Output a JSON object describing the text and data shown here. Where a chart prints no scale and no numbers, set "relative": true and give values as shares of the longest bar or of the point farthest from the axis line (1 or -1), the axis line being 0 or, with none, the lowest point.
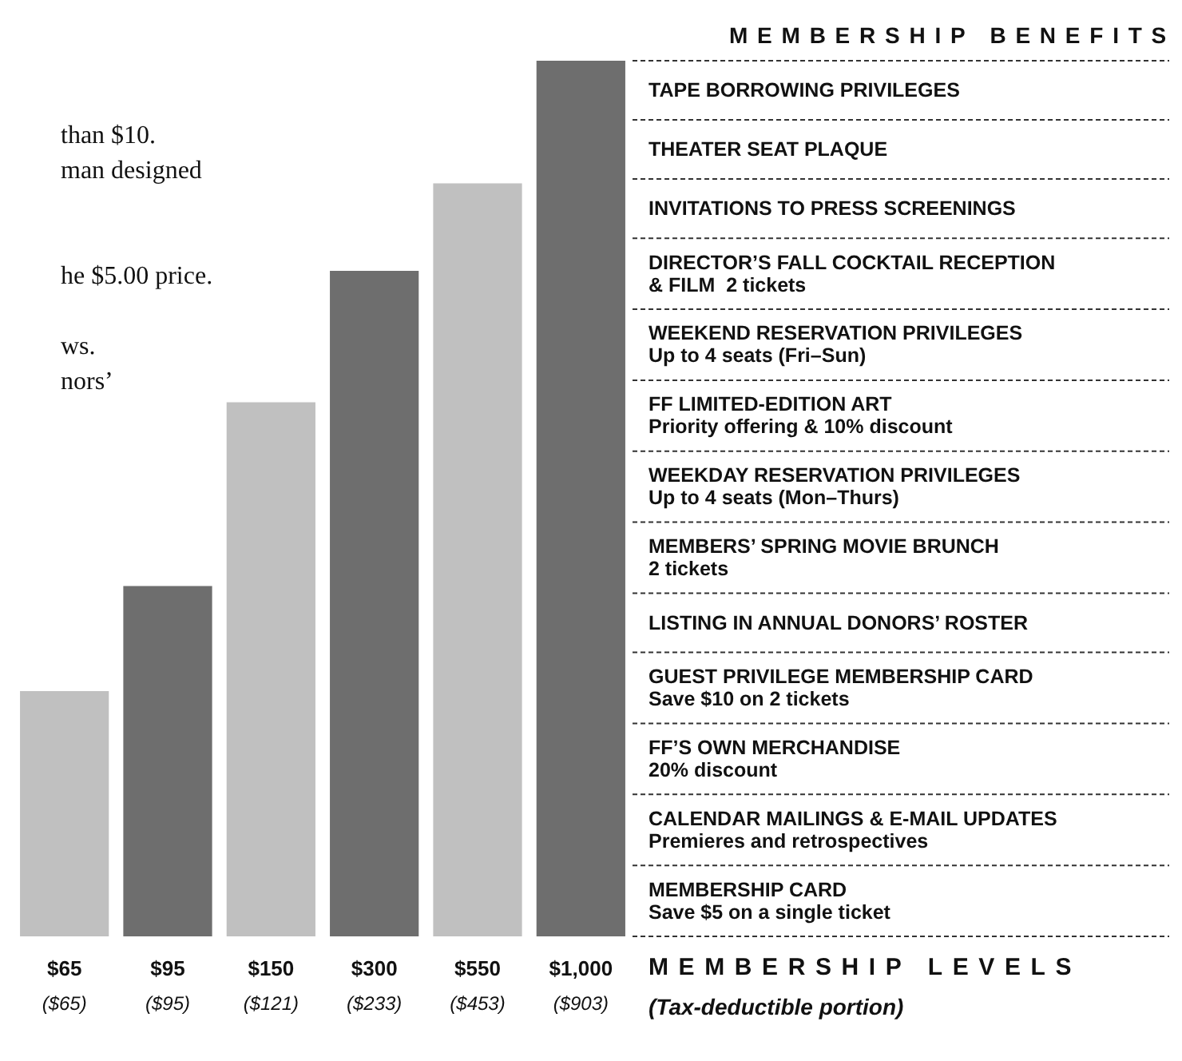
{
  "chart_data": {
    "type": "bar",
    "relative": true,
    "title": "MEMBERSHIP BENEFITS",
    "subtitle": "than $10.\nman designed\n\n\nhe $5.00 price.\n\nws.\nnors’",
    "categories": [
      "$65\n($65)",
      "$95\n($95)",
      "$150\n($121)",
      "$300\n($233)",
      "$550\n($453)",
      "$1,000\n($903)"
    ],
    "values": [
      0.28,
      0.4,
      0.61,
      0.76,
      0.86,
      1
    ],
    "colors": [
      "#c0c0c0",
      "#6e6e6e",
      "#c0c0c0",
      "#6e6e6e",
      "#c0c0c0",
      "#6e6e6e"
    ],
    "xlabel": "MEMBERSHIP LEVELS\n(Tax-deductible portion)",
    "annotations": [
      "TAPE BORROWING PRIVILEGES",
      "THEATER SEAT PLAQUE",
      "INVITATIONS TO PRESS SCREENINGS",
      "DIRECTOR’S FALL COCKTAIL RECEPTION\n& FILM  2 tickets",
      "WEEKEND RESERVATION PRIVILEGES\nUp to 4 seats (Fri–Sun)",
      "FF LIMITED-EDITION ART\nPriority offering & 10% discount",
      "WEEKDAY RESERVATION PRIVILEGES\nUp to 4 seats (Mon–Thurs)",
      "MEMBERS’ SPRING MOVIE BRUNCH\n2 tickets",
      "LISTING IN ANNUAL DONORS’ ROSTER",
      "GUEST PRIVILEGE MEMBERSHIP CARD\nSave $10 on 2 tickets",
      "FF’S OWN MERCHANDISE\n20% discount",
      "CALENDAR MAILINGS & E-MAIL UPDATES\nPremieres and retrospectives",
      "MEMBERSHIP CARD\nSave $5 on a single ticket"
    ],
    "grid": false
  }
}
